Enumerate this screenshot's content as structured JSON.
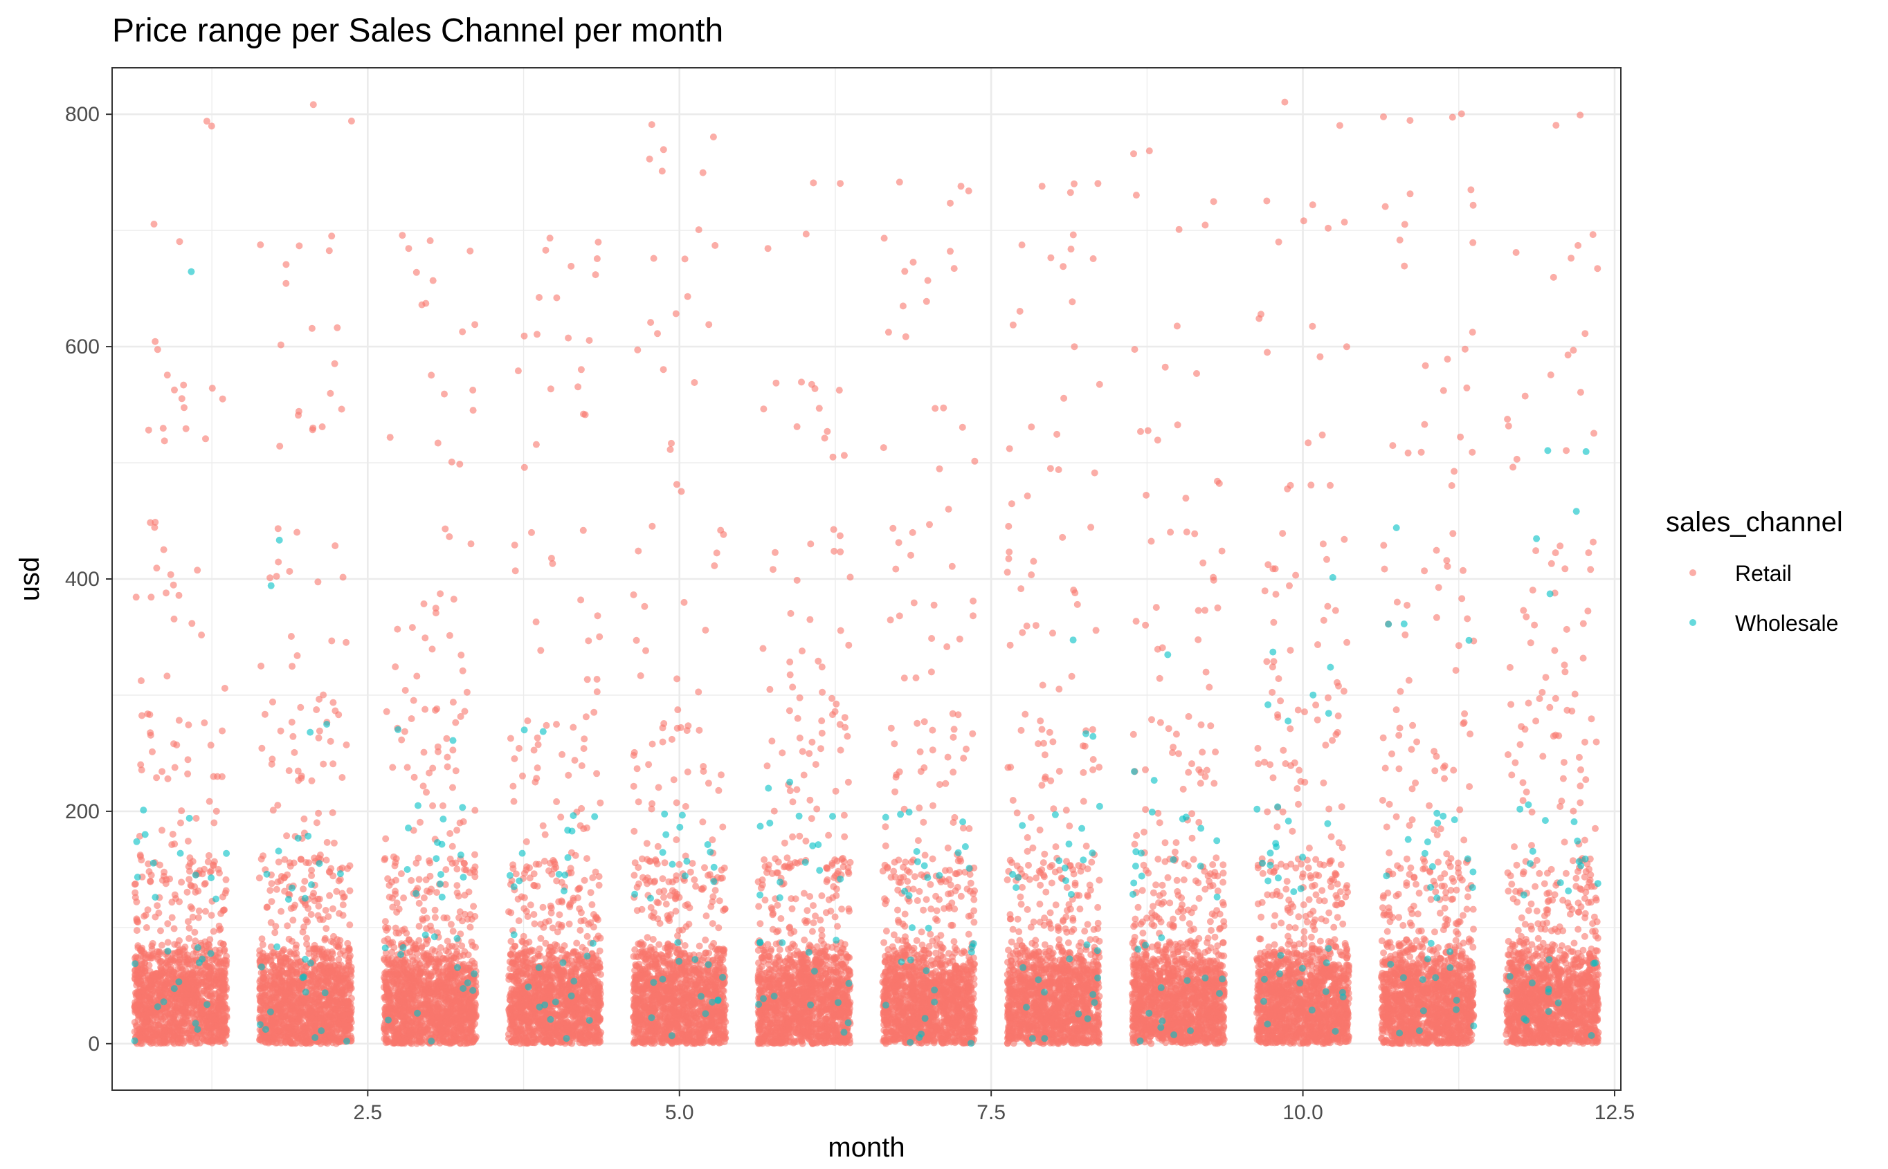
{
  "chart_data": {
    "type": "scatter",
    "title": "Price range per Sales Channel per month",
    "xlabel": "month",
    "ylabel": "usd",
    "xlim": [
      0.45,
      12.55
    ],
    "ylim": [
      -40,
      840
    ],
    "x_ticks": [
      2.5,
      5.0,
      7.5,
      10.0,
      12.5
    ],
    "x_tick_labels": [
      "2.5",
      "5.0",
      "7.5",
      "10.0",
      "12.5"
    ],
    "y_ticks": [
      0,
      200,
      400,
      600,
      800
    ],
    "y_tick_labels": [
      "0",
      "200",
      "400",
      "600",
      "800"
    ],
    "grid": true,
    "jitter_width": 0.37,
    "legend": {
      "title": "sales_channel",
      "position": "right",
      "entries": [
        "Retail",
        "Wholesale"
      ]
    },
    "series": [
      {
        "name": "Retail",
        "color": "#F8766D",
        "months": [
          1,
          2,
          3,
          4,
          5,
          6,
          7,
          8,
          9,
          10,
          11,
          12
        ],
        "dense_range": [
          0,
          95
        ],
        "notable_values": [
          {
            "month": 1,
            "usd": [
              791,
              694,
              607,
              573,
              565,
              556,
              537,
              529,
              521,
              448,
              417,
              394,
              387,
              356,
              312,
              281,
              264,
              243,
              226,
              200,
              178,
              156
            ]
          },
          {
            "month": 2,
            "usd": [
              799,
              694,
              686,
              660,
              607,
              590,
              556,
              545,
              537,
              521,
              434,
              408,
              394,
              347,
              328,
              295,
              278,
              260,
              243,
              226,
              200,
              178,
              156
            ]
          },
          {
            "month": 3,
            "usd": [
              694,
              686,
              660,
              637,
              607,
              565,
              556,
              521,
              508,
              434,
              381,
              365,
              347,
              330,
              312,
              295,
              278,
              260,
              243,
              226,
              200,
              178,
              156
            ]
          },
          {
            "month": 4,
            "usd": [
              694,
              677,
              668,
              637,
              612,
              607,
              573,
              569,
              547,
              504,
              434,
              416,
              373,
              347,
              306,
              278,
              260,
              243,
              226,
              200,
              178,
              156
            ]
          },
          {
            "month": 5,
            "usd": [
              781,
              760,
              746,
              694,
              682,
              633,
              621,
              607,
              573,
              513,
              486,
              438,
              416,
              382,
              347,
              312,
              278,
              260,
              243,
              226,
              200,
              178,
              156
            ]
          },
          {
            "month": 6,
            "usd": [
              729,
              694,
              577,
              573,
              556,
              543,
              521,
              503,
              438,
              425,
              408,
              365,
              347,
              330,
              312,
              295,
              278,
              260,
              243,
              226,
              200,
              178,
              156
            ]
          },
          {
            "month": 7,
            "usd": [
              737,
              729,
              694,
              672,
              655,
              629,
              607,
              556,
              521,
              499,
              451,
              434,
              416,
              382,
              365,
              347,
              312,
              278,
              260,
              243,
              226,
              200,
              178,
              156
            ]
          },
          {
            "month": 8,
            "usd": [
              741,
              729,
              694,
              677,
              672,
              642,
              607,
              556,
              521,
              503,
              486,
              460,
              443,
              425,
              399,
              382,
              365,
              347,
              312,
              278,
              260,
              243,
              226,
              200,
              178,
              156
            ]
          },
          {
            "month": 9,
            "usd": [
              764,
              729,
              694,
              607,
              586,
              534,
              521,
              486,
              469,
              451,
              434,
              408,
              382,
              365,
              347,
              312,
              278,
              260,
              243,
              226,
              200,
              178,
              156
            ]
          },
          {
            "month": 10,
            "usd": [
              799,
              729,
              711,
              694,
              629,
              607,
              590,
              521,
              486,
              469,
              430,
              416,
              399,
              382,
              365,
              347,
              330,
              312,
              295,
              278,
              260,
              243,
              226,
              200,
              178,
              156
            ]
          },
          {
            "month": 11,
            "usd": [
              799,
              794,
              729,
              711,
              694,
              681,
              607,
              590,
              573,
              530,
              521,
              508,
              486,
              434,
              416,
              399,
              382,
              365,
              347,
              312,
              278,
              260,
              243,
              226,
              200,
              178,
              156
            ]
          },
          {
            "month": 12,
            "usd": [
              794,
              694,
              681,
              660,
              607,
              586,
              556,
              530,
              521,
              499,
              434,
              416,
              399,
              382,
              365,
              347,
              330,
              312,
              295,
              278,
              260,
              243,
              226,
              200,
              178,
              156
            ]
          }
        ]
      },
      {
        "name": "Wholesale",
        "color": "#00BFC4",
        "notable_values": [
          {
            "month": 1,
            "usd": [
              660,
              200,
              178,
              160,
              150,
              140,
              130
            ]
          },
          {
            "month": 2,
            "usd": [
              434,
              395,
              270,
              178,
              160,
              150,
              140,
              130
            ]
          },
          {
            "month": 3,
            "usd": [
              265,
              200,
              190,
              170,
              160,
              150,
              140,
              130
            ]
          },
          {
            "month": 4,
            "usd": [
              270,
              200,
              178,
              160,
              150,
              140,
              130
            ]
          },
          {
            "month": 5,
            "usd": [
              200,
              185,
              170,
              160,
              150,
              140,
              130
            ]
          },
          {
            "month": 6,
            "usd": [
              225,
              200,
              185,
              170,
              155,
              140,
              130
            ]
          },
          {
            "month": 7,
            "usd": [
              200,
              190,
              170,
              160,
              150,
              140,
              130,
              100
            ]
          },
          {
            "month": 8,
            "usd": [
              350,
              265,
              200,
              190,
              170,
              160,
              150,
              140,
              130
            ]
          },
          {
            "month": 9,
            "usd": [
              333,
              230,
              200,
              190,
              170,
              160,
              150,
              140,
              130
            ]
          },
          {
            "month": 10,
            "usd": [
              400,
              335,
              320,
              295,
              280,
              200,
              190,
              170,
              160,
              150,
              140,
              130
            ]
          },
          {
            "month": 11,
            "usd": [
              448,
              365,
              357,
              345,
              200,
              190,
              170,
              160,
              150,
              140,
              130
            ]
          },
          {
            "month": 12,
            "usd": [
              507,
              510,
              457,
              435,
              387,
              200,
              190,
              170,
              160,
              150,
              140,
              130
            ]
          }
        ]
      }
    ]
  }
}
